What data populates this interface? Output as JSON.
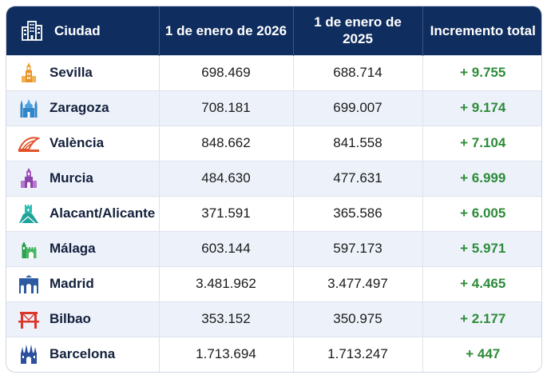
{
  "header": {
    "city": "Ciudad",
    "col_2026": "1 de enero de 2026",
    "col_2025": "1 de enero de 2025",
    "col_increase": "Incremento total"
  },
  "colors": {
    "header_bg": "#0f2d5e",
    "increase_text": "#2e8b3a",
    "row_alt": "#edf2fa"
  },
  "rows": [
    {
      "city": "Sevilla",
      "icon": "giralda-tower-icon",
      "icon_color": "#e8932a",
      "pop_2026": "698.469",
      "pop_2025": "688.714",
      "increase": "+ 9.755"
    },
    {
      "city": "Zaragoza",
      "icon": "pilar-basilica-icon",
      "icon_color": "#2f86c9",
      "pop_2026": "708.181",
      "pop_2025": "699.007",
      "increase": "+ 9.174"
    },
    {
      "city": "València",
      "icon": "arts-sciences-icon",
      "icon_color": "#e0532a",
      "pop_2026": "848.662",
      "pop_2025": "841.558",
      "increase": "+ 7.104"
    },
    {
      "city": "Murcia",
      "icon": "cathedral-tower-icon",
      "icon_color": "#8e44ad",
      "pop_2026": "484.630",
      "pop_2025": "477.631",
      "increase": "+ 6.999"
    },
    {
      "city": "Alacant/Alicante",
      "icon": "castle-hill-icon",
      "icon_color": "#1fa39a",
      "pop_2026": "371.591",
      "pop_2025": "365.586",
      "increase": "+ 6.005"
    },
    {
      "city": "Málaga",
      "icon": "alcazaba-icon",
      "icon_color": "#2e9e4f",
      "pop_2026": "603.144",
      "pop_2025": "597.173",
      "increase": "+ 5.971"
    },
    {
      "city": "Madrid",
      "icon": "puerta-alcala-icon",
      "icon_color": "#2c5aa0",
      "pop_2026": "3.481.962",
      "pop_2025": "3.477.497",
      "increase": "+ 4.465"
    },
    {
      "city": "Bilbao",
      "icon": "bridge-icon",
      "icon_color": "#d9372b",
      "pop_2026": "353.152",
      "pop_2025": "350.975",
      "increase": "+ 2.177"
    },
    {
      "city": "Barcelona",
      "icon": "sagrada-familia-icon",
      "icon_color": "#2c4f9e",
      "pop_2026": "1.713.694",
      "pop_2025": "1.713.247",
      "increase": "+ 447"
    }
  ]
}
